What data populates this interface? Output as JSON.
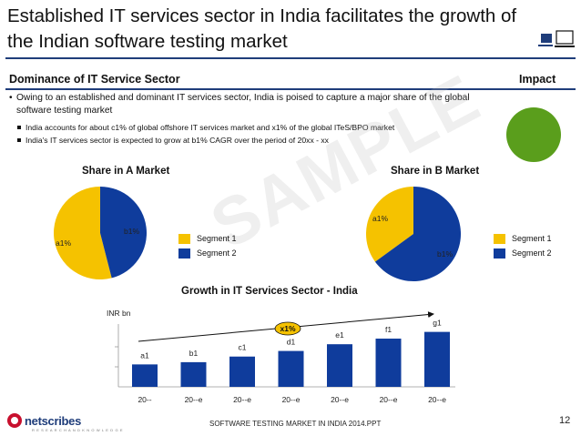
{
  "title": "Established IT services sector in India facilitates the growth of the Indian software testing market",
  "section": {
    "left_heading": "Dominance of IT Service Sector",
    "right_heading": "Impact"
  },
  "bullets": {
    "main": "Owing to an established and dominant IT services sector, India is poised to capture a major share of the global software testing market",
    "sub": [
      "India accounts for about c1% of global offshore IT services market and x1% of the global ITeS/BPO market",
      "India's IT services sector is expected to grow at b1% CAGR over the period of 20xx - xx"
    ]
  },
  "watermark": "SAMPLE",
  "colors": {
    "segment1": "#f5c200",
    "segment2": "#0f3c9c",
    "impact": "#5a9e1c",
    "bar": "#0f3c9c",
    "accent": "#1f3d7a"
  },
  "chart_data": [
    {
      "type": "pie",
      "title": "Share in A Market",
      "labels": [
        "Segment 1",
        "Segment 2"
      ],
      "values": [
        54,
        46
      ],
      "data_labels": [
        "a1%",
        "b1%"
      ]
    },
    {
      "type": "pie",
      "title": "Share in B Market",
      "labels": [
        "Segment 1",
        "Segment 2"
      ],
      "values": [
        35,
        65
      ],
      "data_labels": [
        "a1%",
        "b1%"
      ]
    },
    {
      "type": "bar",
      "title": "Growth in IT Services Sector - India",
      "ylabel": "INR bn",
      "categories": [
        "20--",
        "20--e",
        "20--e",
        "20--e",
        "20--e",
        "20--e",
        "20--e"
      ],
      "values": [
        20,
        22,
        27,
        32,
        38,
        43,
        49
      ],
      "data_labels": [
        "a1",
        "b1",
        "c1",
        "d1",
        "e1",
        "f1",
        "g1"
      ],
      "ylim": [
        0,
        56
      ],
      "cagr_label": "x1%"
    }
  ],
  "footer": {
    "text": "SOFTWARE TESTING MARKET IN INDIA 2014.PPT",
    "page": "12",
    "logo": "netscribes",
    "logo_tagline": "R E S E A R C H   A N D   K N O W L E D G E"
  }
}
